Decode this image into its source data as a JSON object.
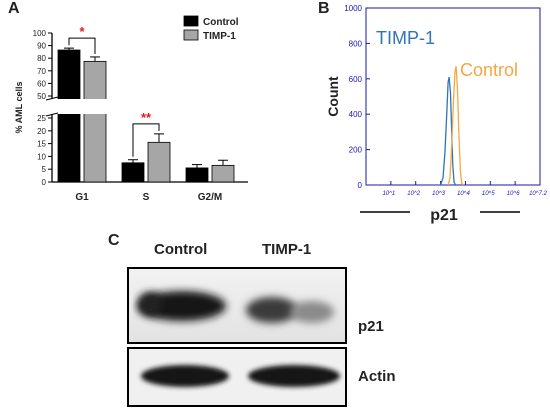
{
  "panels": {
    "a": {
      "letter": "A"
    },
    "b": {
      "letter": "B"
    },
    "c": {
      "letter": "C"
    }
  },
  "chart_data": [
    {
      "type": "bar",
      "panel": "A",
      "ylabel": "% AML cells",
      "categories": [
        "G1",
        "S",
        "G2/M"
      ],
      "series": [
        {
          "name": "Control",
          "color": "#000000",
          "values": [
            86.5,
            7.5,
            5.5
          ],
          "errors": [
            1.5,
            1.2,
            1.3
          ]
        },
        {
          "name": "TIMP-1",
          "color": "#a6a6a6",
          "values": [
            77.5,
            15.5,
            6.5
          ],
          "errors": [
            3.5,
            3.3,
            2.0
          ]
        }
      ],
      "axis_break": {
        "lower": [
          0,
          25
        ],
        "upper": [
          50,
          100
        ]
      },
      "yticks": [
        "0",
        "5",
        "10",
        "15",
        "20",
        "25",
        "50",
        "60",
        "70",
        "80",
        "90",
        "100"
      ],
      "significance": [
        {
          "category": "G1",
          "label": "*",
          "color": "#e31a1c"
        },
        {
          "category": "S",
          "label": "**",
          "color": "#e31a1c"
        }
      ],
      "legend_position": "top-right"
    },
    {
      "type": "line",
      "panel": "B",
      "ylabel": "Count",
      "xlabel": "p21",
      "log_x": true,
      "xlim": [
        1,
        10000000
      ],
      "ylim": [
        0,
        1000
      ],
      "yticks": [
        "0",
        "200",
        "400",
        "600",
        "800",
        "1000"
      ],
      "xticks": [
        "10^1",
        "10^2",
        "10^3",
        "10^4",
        "10^5",
        "10^6",
        "10^7.2"
      ],
      "grid": false,
      "series": [
        {
          "name": "TIMP-1",
          "color": "#2e75b6",
          "points": [
            [
              1000,
              0
            ],
            [
              1250,
              40
            ],
            [
              1500,
              180
            ],
            [
              1800,
              420
            ],
            [
              2000,
              580
            ],
            [
              2200,
              610
            ],
            [
              2500,
              520
            ],
            [
              2800,
              300
            ],
            [
              3100,
              110
            ],
            [
              3500,
              15
            ],
            [
              4000,
              0
            ]
          ]
        },
        {
          "name": "Control",
          "color": "#f4a742",
          "points": [
            [
              2000,
              0
            ],
            [
              2400,
              40
            ],
            [
              2800,
              220
            ],
            [
              3300,
              480
            ],
            [
              3800,
              640
            ],
            [
              4200,
              670
            ],
            [
              4800,
              540
            ],
            [
              5400,
              300
            ],
            [
              6200,
              90
            ],
            [
              7000,
              10
            ],
            [
              8000,
              0
            ]
          ]
        }
      ]
    }
  ],
  "western_blot": {
    "columns": [
      "Control",
      "TIMP-1"
    ],
    "rows": [
      "p21",
      "Actin"
    ]
  }
}
